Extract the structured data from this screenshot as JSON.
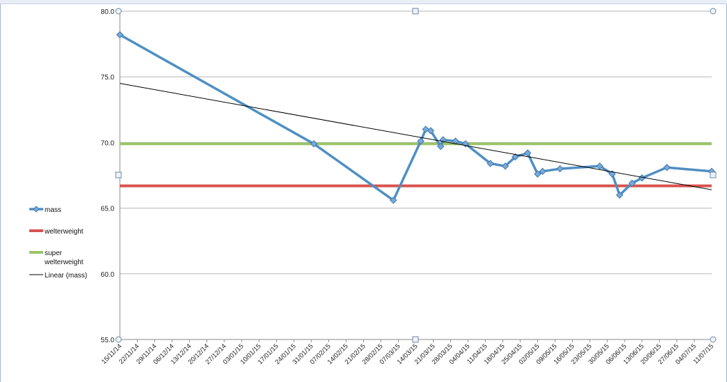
{
  "chart_data": {
    "type": "line",
    "title": "",
    "xlabel": "",
    "ylabel": "",
    "ylim": [
      55.0,
      80.0
    ],
    "y_ticks": [
      "80.0",
      "75.0",
      "70.0",
      "65.0",
      "60.0",
      "55.0"
    ],
    "grid": true,
    "legend_position": "left",
    "x_tick_labels": [
      "15/11/14",
      "22/11/14",
      "29/11/14",
      "06/12/14",
      "13/12/14",
      "20/12/14",
      "27/12/14",
      "03/01/15",
      "10/01/15",
      "17/01/15",
      "24/01/15",
      "31/01/15",
      "07/02/15",
      "14/02/15",
      "21/02/15",
      "28/02/15",
      "07/03/15",
      "14/03/15",
      "21/03/15",
      "28/03/15",
      "04/04/15",
      "11/04/15",
      "18/04/15",
      "25/04/15",
      "02/05/15",
      "09/05/15",
      "16/05/15",
      "23/05/15",
      "30/05/15",
      "06/06/15",
      "13/06/15",
      "20/06/15",
      "27/06/15",
      "04/07/15",
      "11/07/15"
    ],
    "x_start": "15/11/14",
    "x_end": "11/07/15",
    "series": [
      {
        "name": "mass",
        "color": "#4f8fc3",
        "marker": "diamond",
        "points": [
          {
            "x": "15/11/14",
            "y": 78.2
          },
          {
            "x": "01/02/15",
            "y": 69.9
          },
          {
            "x": "05/03/15",
            "y": 65.6
          },
          {
            "x": "16/03/15",
            "y": 70.1
          },
          {
            "x": "18/03/15",
            "y": 71.0
          },
          {
            "x": "20/03/15",
            "y": 70.9
          },
          {
            "x": "24/03/15",
            "y": 69.7
          },
          {
            "x": "25/03/15",
            "y": 70.2
          },
          {
            "x": "30/03/15",
            "y": 70.1
          },
          {
            "x": "03/04/15",
            "y": 69.9
          },
          {
            "x": "13/04/15",
            "y": 68.4
          },
          {
            "x": "19/04/15",
            "y": 68.2
          },
          {
            "x": "23/04/15",
            "y": 68.9
          },
          {
            "x": "28/04/15",
            "y": 69.2
          },
          {
            "x": "02/05/15",
            "y": 67.6
          },
          {
            "x": "04/05/15",
            "y": 67.8
          },
          {
            "x": "11/05/15",
            "y": 68.0
          },
          {
            "x": "27/05/15",
            "y": 68.2
          },
          {
            "x": "01/06/15",
            "y": 67.6
          },
          {
            "x": "04/06/15",
            "y": 66.0
          },
          {
            "x": "09/06/15",
            "y": 66.9
          },
          {
            "x": "13/06/15",
            "y": 67.3
          },
          {
            "x": "23/06/15",
            "y": 68.1
          },
          {
            "x": "11/07/15",
            "y": 67.8
          }
        ]
      },
      {
        "name": "welterweight",
        "color": "#d9534f",
        "constant": 66.7
      },
      {
        "name": "super welterweight",
        "label_lines": [
          "super",
          "welterweight"
        ],
        "color": "#9bc46a",
        "constant": 69.9
      },
      {
        "name": "Linear (mass)",
        "color": "#000000",
        "trend_start": {
          "x": "15/11/14",
          "y": 74.5
        },
        "trend_end": {
          "x": "11/07/15",
          "y": 66.4
        }
      }
    ]
  }
}
